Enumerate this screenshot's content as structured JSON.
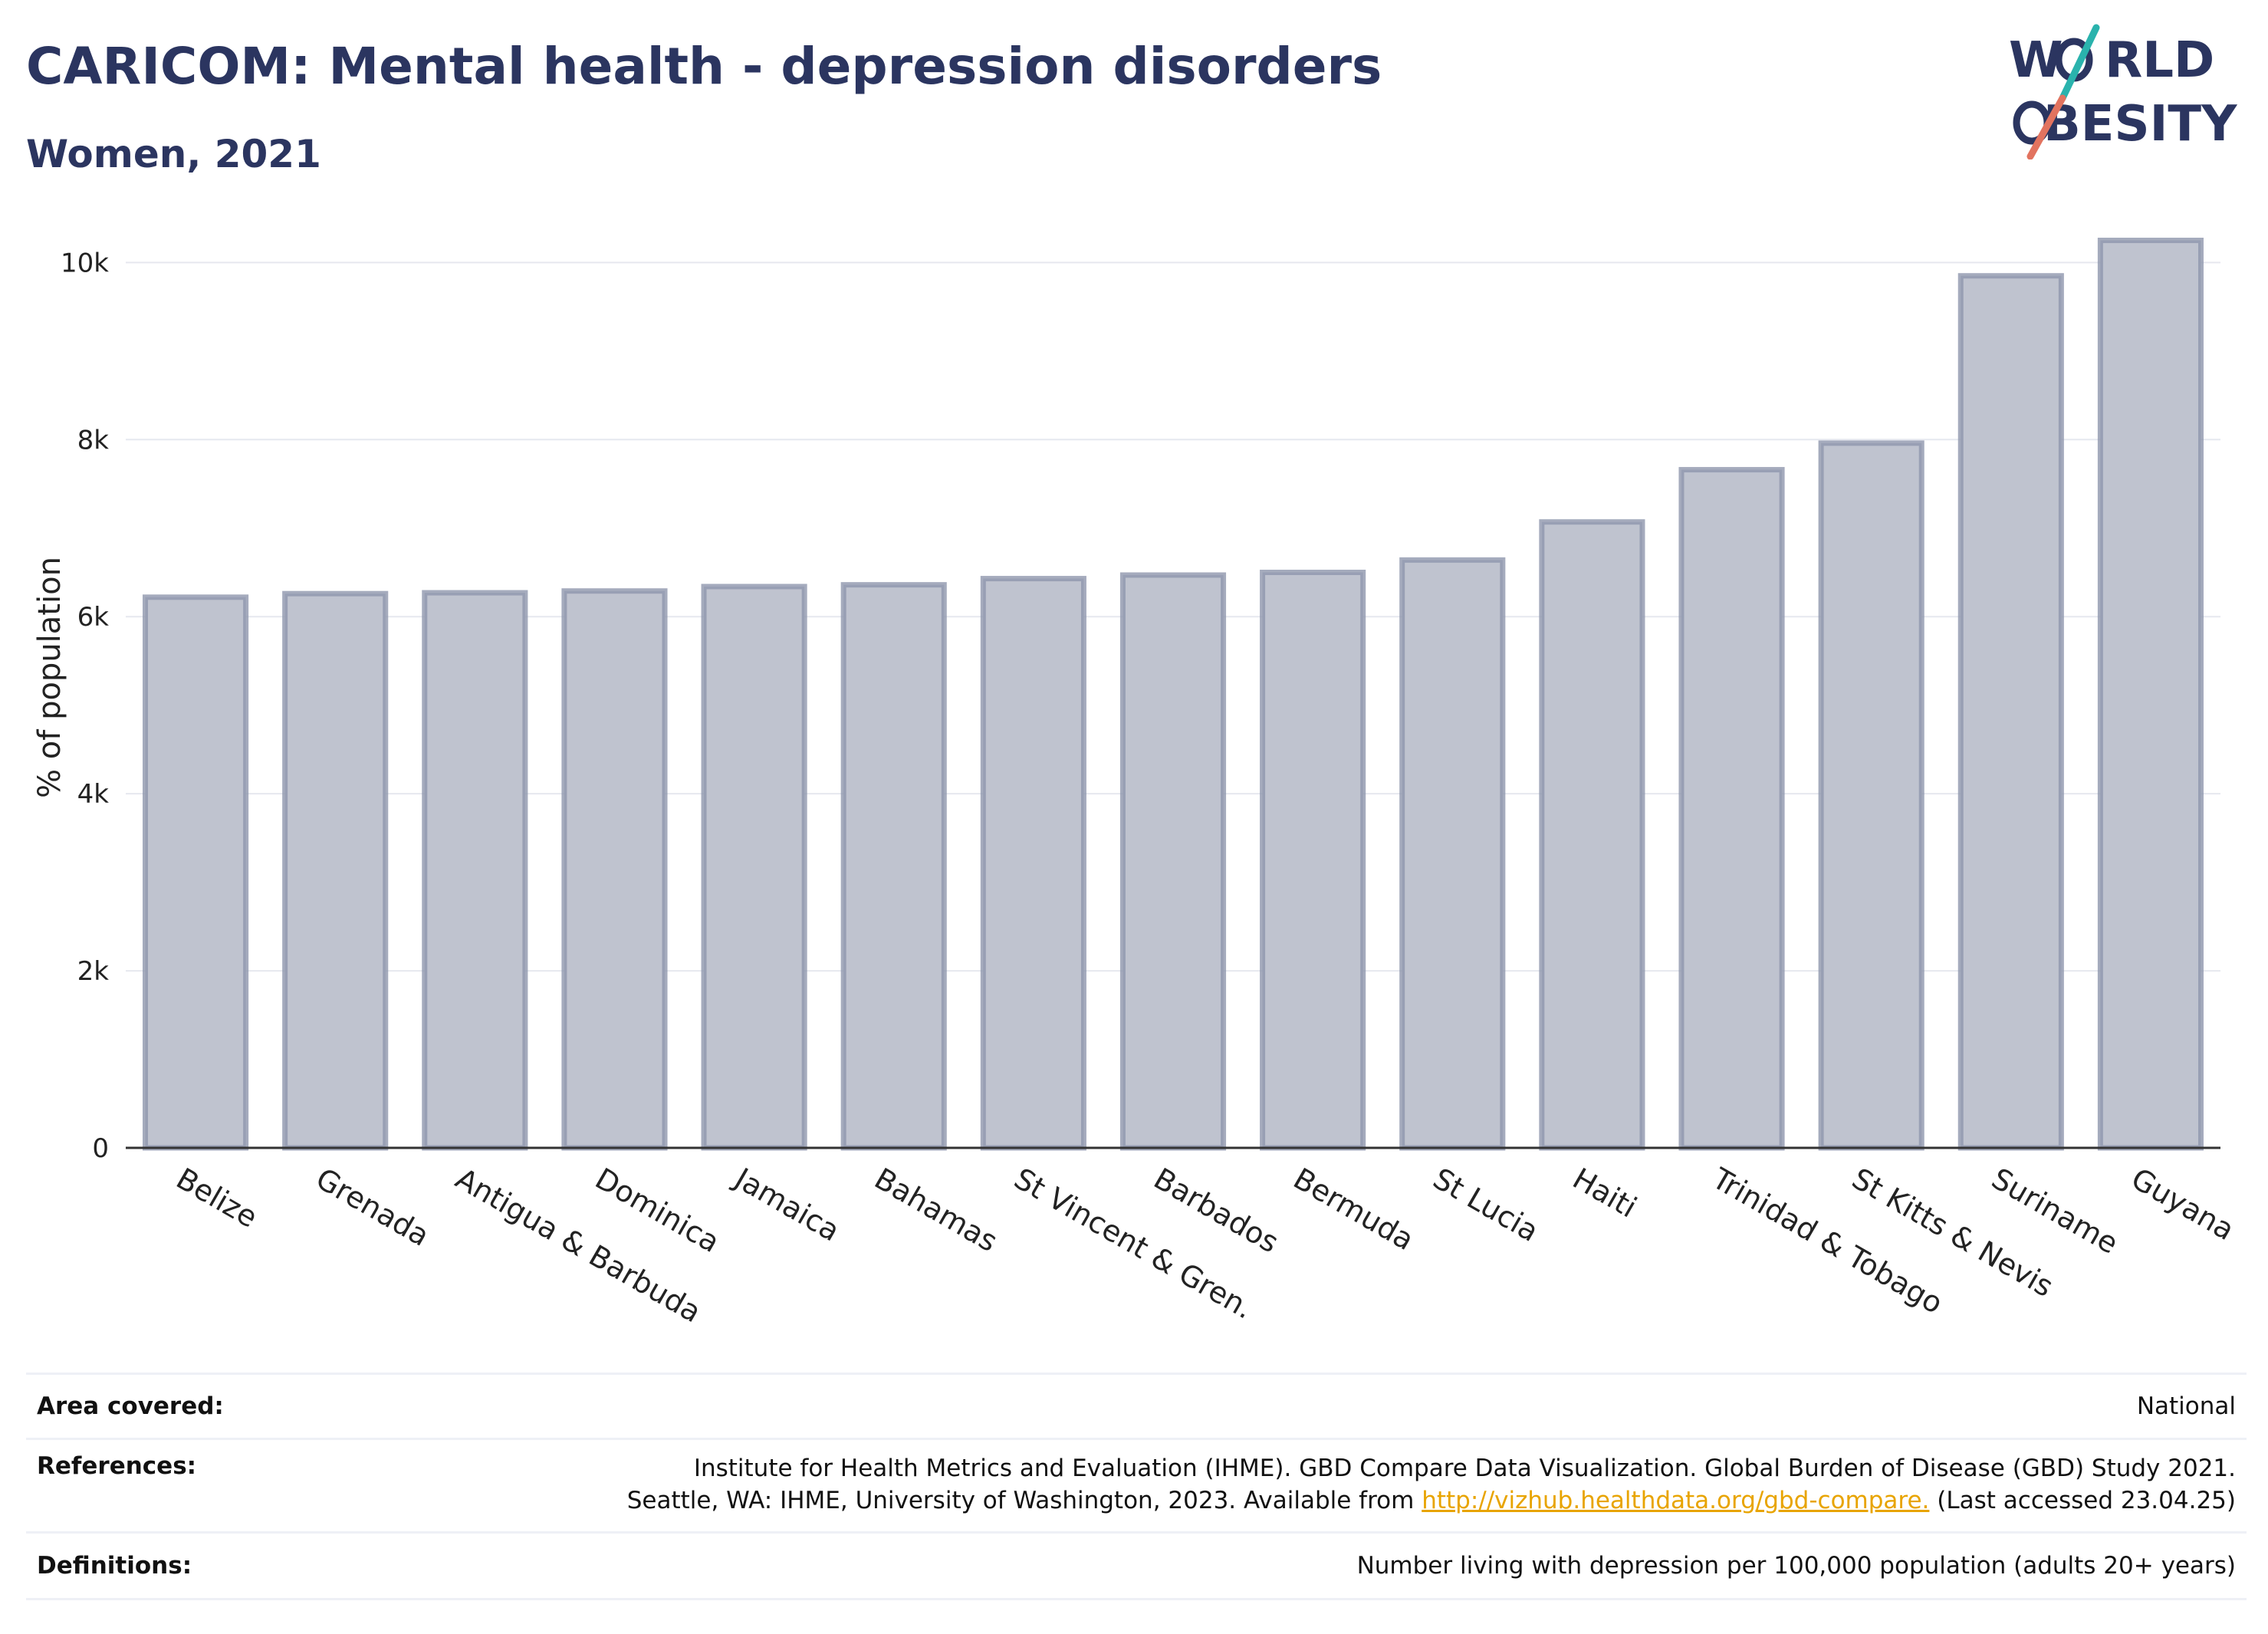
{
  "header": {
    "title": "CARICOM: Mental health - depression disorders",
    "subtitle": "Women, 2021"
  },
  "logo": {
    "line1_prefix": "W",
    "line1_suffix": "RLD",
    "line2_suffix": "BESITY",
    "colors": {
      "text": "#2b3560",
      "teal": "#2ab3ad",
      "coral": "#e2735f"
    }
  },
  "chart_data": {
    "type": "bar",
    "categories": [
      "Belize",
      "Grenada",
      "Antigua & Barbuda",
      "Dominica",
      "Jamaica",
      "Bahamas",
      "St Vincent & Gren.",
      "Barbados",
      "Bermuda",
      "St Lucia",
      "Haiti",
      "Trinidad & Tobago",
      "St Kitts & Nevis",
      "Suriname",
      "Guyana"
    ],
    "values": [
      6220,
      6260,
      6270,
      6290,
      6340,
      6360,
      6430,
      6470,
      6500,
      6640,
      7070,
      7660,
      7960,
      9850,
      10250
    ],
    "ylabel": "% of population",
    "xlabel": "",
    "ylim": [
      0,
      10800
    ],
    "yticks": [
      0,
      2000,
      4000,
      6000,
      8000,
      10000
    ],
    "ytick_labels": [
      "0",
      "2k",
      "4k",
      "6k",
      "8k",
      "10k"
    ],
    "grid": true,
    "colors": {
      "bar_fill": "#bfc3cf",
      "bar_stroke": "#8f96ad",
      "grid": "#e6e8ef",
      "axis": "#333333"
    }
  },
  "info": {
    "area_label": "Area covered:",
    "area_value": "National",
    "references_label": "References:",
    "references_line1": "Institute for Health Metrics and Evaluation (IHME). GBD Compare Data Visualization. Global Burden of Disease (GBD) Study 2021.",
    "references_line2_pre": "Seattle, WA: IHME, University of Washington, 2023. Available from",
    "references_link": "http://vizhub.healthdata.org/gbd-compare.",
    "references_line2_post": "(Last accessed 23.04.25)",
    "definitions_label": "Definitions:",
    "definitions_value": "Number living with depression per 100,000 population (adults 20+ years)"
  }
}
